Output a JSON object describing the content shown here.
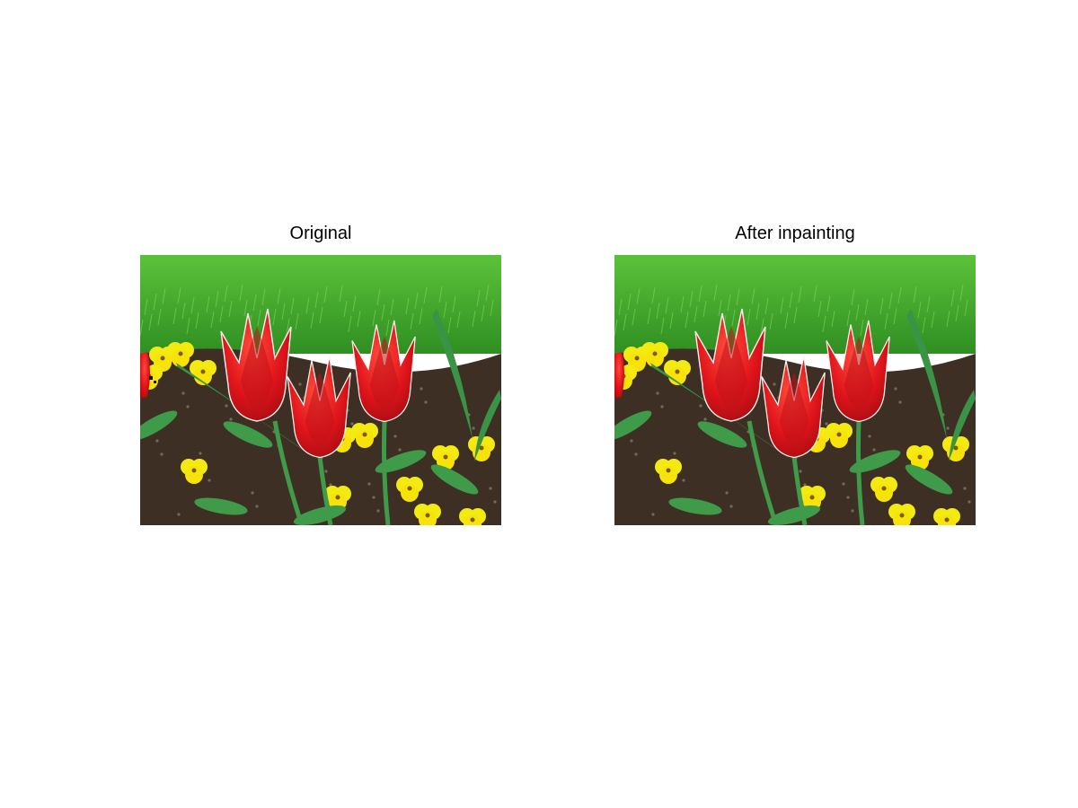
{
  "panels": [
    {
      "title": "Original",
      "image": "tulip-garden-photo"
    },
    {
      "title": "After inpainting",
      "image": "tulip-garden-photo-inpainted"
    }
  ],
  "colors": {
    "background": "#ffffff",
    "grass": "#4fb52c",
    "soil": "#3d2f24",
    "tulip_red": "#e0141a",
    "pansy_yellow": "#f3ea12",
    "stem_green": "#3f9a4a"
  }
}
